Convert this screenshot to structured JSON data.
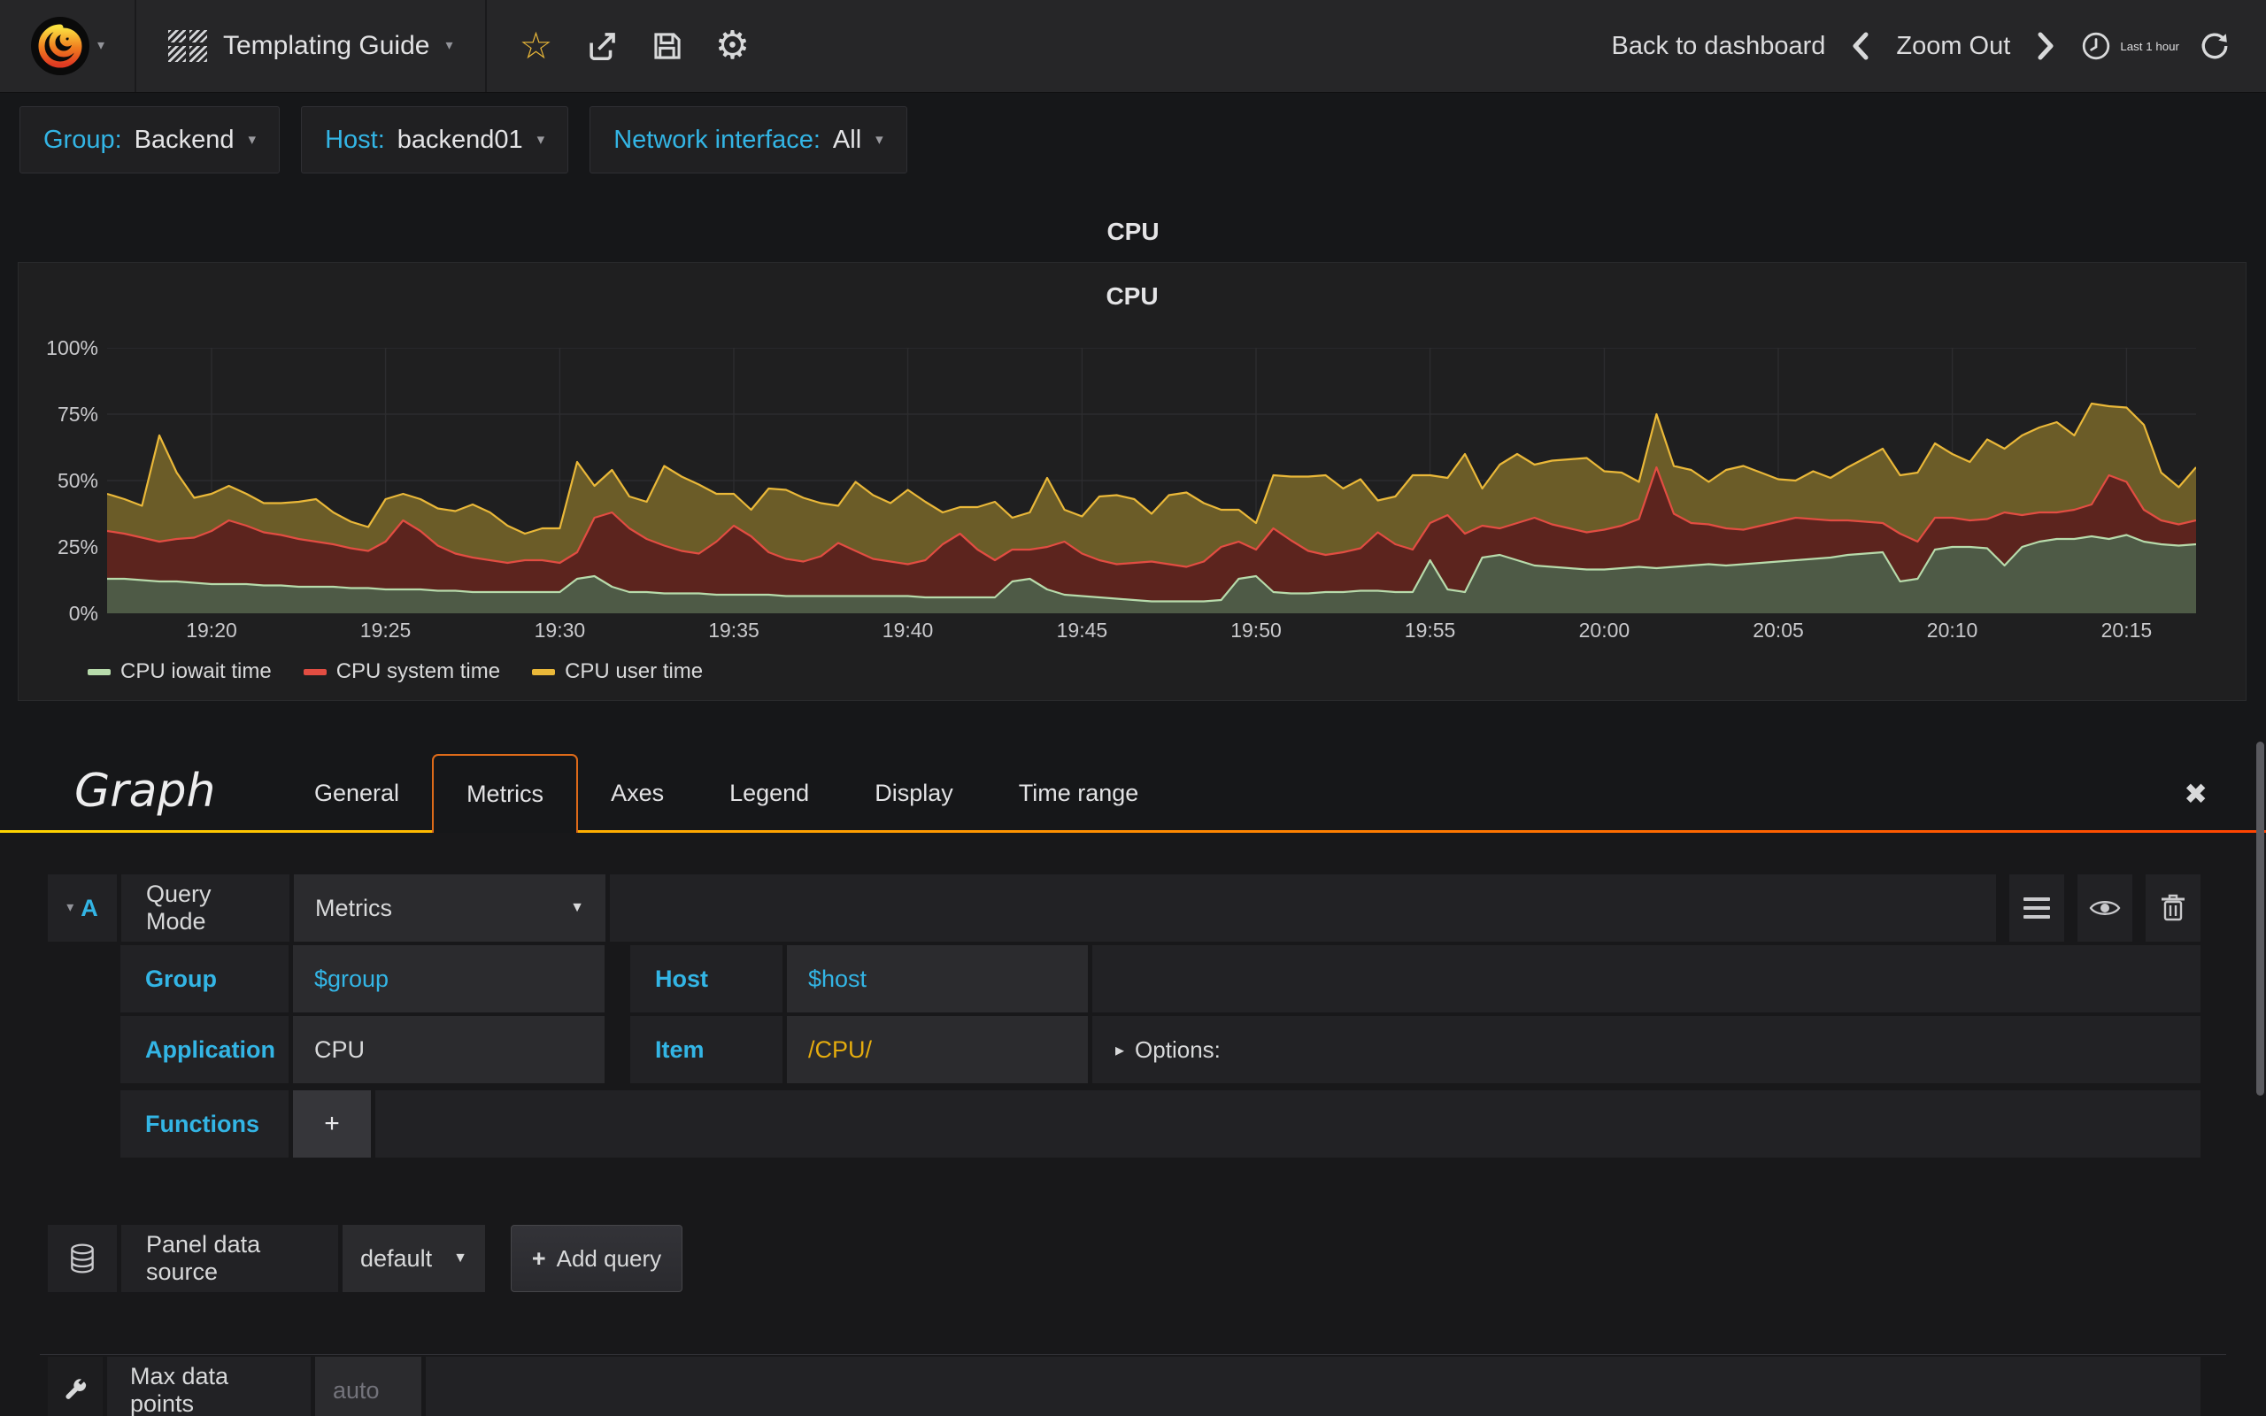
{
  "navbar": {
    "dashboard_title": "Templating Guide",
    "back_label": "Back to dashboard",
    "zoom_out_label": "Zoom Out",
    "time_range_label": "Last 1 hour"
  },
  "icons": {
    "caret": "▾",
    "caret_solid": "▼",
    "caret_right": "▸",
    "star": "☆",
    "gear": "⚙",
    "close": "✖",
    "plus": "+"
  },
  "variables": [
    {
      "label": "Group:",
      "value": "Backend"
    },
    {
      "label": "Host:",
      "value": "backend01"
    },
    {
      "label": "Network interface:",
      "value": "All"
    }
  ],
  "dashboard": {
    "row_title": "CPU"
  },
  "chart_data": {
    "type": "area",
    "stacked": true,
    "title": "CPU",
    "ylim": [
      0,
      100
    ],
    "grid": true,
    "legend_position": "bottom-left",
    "x_range": [
      "19:17",
      "20:17"
    ],
    "y_ticks": [
      {
        "label": "0%",
        "v": 0
      },
      {
        "label": "25%",
        "v": 25
      },
      {
        "label": "50%",
        "v": 50
      },
      {
        "label": "75%",
        "v": 75
      },
      {
        "label": "100%",
        "v": 100
      }
    ],
    "x_ticks": [
      {
        "label": "19:20",
        "f": 0.05
      },
      {
        "label": "19:25",
        "f": 0.1333
      },
      {
        "label": "19:30",
        "f": 0.2167
      },
      {
        "label": "19:35",
        "f": 0.3
      },
      {
        "label": "19:40",
        "f": 0.3833
      },
      {
        "label": "19:45",
        "f": 0.4667
      },
      {
        "label": "19:50",
        "f": 0.55
      },
      {
        "label": "19:55",
        "f": 0.6333
      },
      {
        "label": "20:00",
        "f": 0.7167
      },
      {
        "label": "20:05",
        "f": 0.8
      },
      {
        "label": "20:10",
        "f": 0.8833
      },
      {
        "label": "20:15",
        "f": 0.9667
      }
    ],
    "series": [
      {
        "name": "CPU iowait time",
        "line": "#b7dbab",
        "fill": "#4e5a46",
        "values": [
          13,
          13,
          12.5,
          12,
          12,
          11.5,
          11,
          11,
          11,
          10.5,
          10.5,
          10,
          10,
          10,
          9.5,
          9.5,
          9,
          9,
          9,
          8.5,
          8.5,
          8,
          8,
          8,
          8,
          8,
          8,
          13,
          14,
          10,
          8,
          8,
          7.5,
          7.5,
          7.5,
          7,
          7,
          7,
          7,
          6.5,
          6.5,
          6.5,
          6.5,
          6.5,
          6.5,
          6.5,
          6.5,
          6,
          6,
          6,
          6,
          6,
          12,
          13,
          9,
          7,
          6.5,
          6,
          5.5,
          5,
          4.5,
          4.5,
          4.5,
          4.5,
          5,
          13,
          14,
          8,
          7.5,
          7.5,
          8,
          8,
          8.5,
          8.5,
          8,
          8,
          20,
          9,
          8,
          21,
          22,
          20,
          18,
          17.5,
          17,
          16.5,
          16.5,
          17,
          17.5,
          17,
          17.5,
          18,
          18.5,
          18,
          18.5,
          19,
          19.5,
          20,
          20.5,
          21,
          22,
          22.5,
          23,
          12,
          13,
          24,
          25,
          25,
          24.5,
          18,
          25,
          27,
          28,
          28,
          29,
          28,
          29.5,
          27,
          26,
          25.5,
          26
        ]
      },
      {
        "name": "CPU system time",
        "line": "#e24d42",
        "fill": "#5c241e",
        "values": [
          18,
          17,
          16,
          15,
          16,
          17,
          20,
          24,
          22,
          20,
          19,
          18,
          17,
          16,
          15,
          14,
          18,
          26,
          22,
          17,
          14,
          13,
          12,
          11,
          12,
          12,
          11,
          10,
          22,
          28,
          24,
          20,
          18,
          16,
          15,
          20,
          26,
          22,
          16,
          14,
          13,
          15,
          20,
          17,
          14,
          13,
          12,
          14,
          20,
          24,
          18,
          14,
          12,
          11,
          16,
          20,
          16,
          14,
          13,
          14,
          15,
          14,
          13,
          15,
          20,
          14,
          10,
          24,
          20,
          16,
          14,
          15,
          16,
          22,
          18,
          16,
          14,
          28,
          22,
          12,
          10,
          14,
          18,
          16,
          15,
          14,
          15,
          16,
          18,
          38,
          20,
          16,
          15,
          14,
          13,
          14,
          15,
          16,
          15,
          14,
          13,
          12,
          11,
          18,
          14,
          12,
          11,
          10,
          11,
          20,
          12,
          11,
          10,
          11,
          12,
          24,
          20,
          12,
          9,
          8,
          9
        ]
      },
      {
        "name": "CPU user time",
        "line": "#eab839",
        "fill": "#6b5c28",
        "values": [
          14,
          13,
          12,
          40,
          25,
          15,
          14,
          13,
          12,
          11,
          12,
          14,
          16,
          12,
          10,
          9,
          16,
          10,
          12,
          14,
          16,
          20,
          18,
          14,
          10,
          12,
          13,
          34,
          12,
          16,
          12,
          14,
          30,
          28,
          26,
          18,
          12,
          10,
          24,
          26,
          24,
          20,
          14,
          26,
          24,
          22,
          28,
          22,
          12,
          10,
          16,
          22,
          12,
          14,
          26,
          12,
          14,
          24,
          26,
          24,
          18,
          26,
          28,
          22,
          14,
          12,
          10,
          20,
          24,
          28,
          30,
          24,
          26,
          12,
          18,
          28,
          18,
          14,
          30,
          14,
          24,
          26,
          20,
          24,
          26,
          28,
          22,
          20,
          14,
          20,
          18,
          20,
          16,
          22,
          24,
          20,
          16,
          14,
          18,
          16,
          20,
          24,
          28,
          22,
          26,
          28,
          24,
          22,
          30,
          24,
          30,
          32,
          34,
          28,
          38,
          26,
          28,
          32,
          18,
          14,
          20
        ]
      }
    ]
  },
  "editor": {
    "brand": "Graph",
    "tabs": [
      {
        "label": "General"
      },
      {
        "label": "Metrics"
      },
      {
        "label": "Axes"
      },
      {
        "label": "Legend"
      },
      {
        "label": "Display"
      },
      {
        "label": "Time range"
      }
    ],
    "query": {
      "letter": "A",
      "query_mode_label": "Query Mode",
      "query_mode_value": "Metrics",
      "fields": [
        {
          "label": "Group",
          "value": "$group"
        },
        {
          "label": "Host",
          "value": "$host"
        },
        {
          "label": "Application",
          "value": "CPU"
        },
        {
          "label": "Item",
          "value": "/CPU/"
        }
      ],
      "options_label": "Options:",
      "functions_label": "Functions"
    },
    "datasource": {
      "label": "Panel data source",
      "value": "default",
      "add_query_label": "Add query"
    },
    "max_data_points": {
      "label": "Max data points",
      "placeholder": "auto"
    }
  },
  "colors": {
    "accent_orange": "#e55400",
    "tab_gradient_left": "#ffd500",
    "tab_gradient_right": "#ff4400",
    "blue": "#33b5e5",
    "gold": "#e5ac0e",
    "bg_page": "#161719",
    "bg_panel": "#1f1f20",
    "bg_navbar": "#262628"
  }
}
